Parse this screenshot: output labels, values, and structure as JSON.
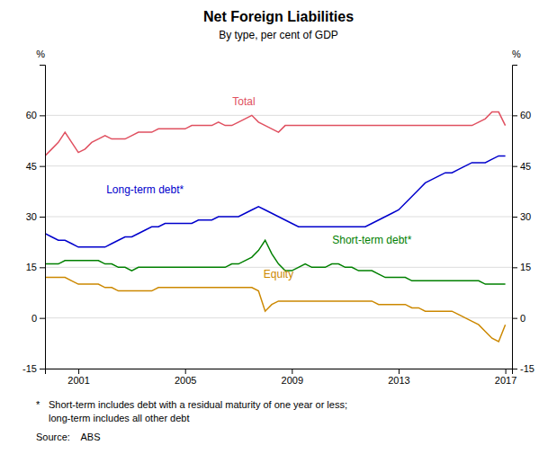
{
  "chart_data": {
    "type": "line",
    "title": "Net Foreign Liabilities",
    "subtitle": "By type, per cent of GDP",
    "ylabel": "%",
    "y2label": "%",
    "xlim": [
      1999.75,
      2017.25
    ],
    "xticks": [
      2001,
      2005,
      2009,
      2013,
      2017
    ],
    "ylim": [
      -15,
      75
    ],
    "yticks": [
      -15,
      0,
      15,
      30,
      45,
      60
    ],
    "y2lim": [
      -15,
      75
    ],
    "y2ticks": [
      -15,
      0,
      15,
      30,
      45,
      60
    ],
    "grid": true,
    "footnote": {
      "marker": "*",
      "lines": [
        "Short-term includes debt with a residual maturity of one year or less;",
        "long-term includes all other debt"
      ]
    },
    "source": "Source:    ABS",
    "x": [
      1999.75,
      2000.0,
      2000.25,
      2000.5,
      2000.75,
      2001.0,
      2001.25,
      2001.5,
      2001.75,
      2002.0,
      2002.25,
      2002.5,
      2002.75,
      2003.0,
      2003.25,
      2003.5,
      2003.75,
      2004.0,
      2004.25,
      2004.5,
      2004.75,
      2005.0,
      2005.25,
      2005.5,
      2005.75,
      2006.0,
      2006.25,
      2006.5,
      2006.75,
      2007.0,
      2007.25,
      2007.5,
      2007.75,
      2008.0,
      2008.25,
      2008.5,
      2008.75,
      2009.0,
      2009.25,
      2009.5,
      2009.75,
      2010.0,
      2010.25,
      2010.5,
      2010.75,
      2011.0,
      2011.25,
      2011.5,
      2011.75,
      2012.0,
      2012.25,
      2012.5,
      2012.75,
      2013.0,
      2013.25,
      2013.5,
      2013.75,
      2014.0,
      2014.25,
      2014.5,
      2014.75,
      2015.0,
      2015.25,
      2015.5,
      2015.75,
      2016.0,
      2016.25,
      2016.5,
      2016.75,
      2017.0
    ],
    "series": [
      {
        "name": "Total",
        "color": "#e05060",
        "label_x": 2007.2,
        "label_y": 63,
        "values": [
          48,
          50,
          52,
          55,
          52,
          49,
          50,
          52,
          53,
          54,
          53,
          53,
          53,
          54,
          55,
          55,
          55,
          56,
          56,
          56,
          56,
          56,
          57,
          57,
          57,
          57,
          58,
          57,
          57,
          58,
          59,
          60,
          58,
          57,
          56,
          55,
          57,
          57,
          57,
          57,
          57,
          57,
          57,
          57,
          57,
          57,
          57,
          57,
          57,
          57,
          57,
          57,
          57,
          57,
          57,
          57,
          57,
          57,
          57,
          57,
          57,
          57,
          57,
          57,
          57,
          58,
          59,
          61,
          61,
          57
        ]
      },
      {
        "name": "Long-term debt*",
        "color": "#0000cc",
        "label_x": 2003.5,
        "label_y": 37,
        "values": [
          25,
          24,
          23,
          23,
          22,
          21,
          21,
          21,
          21,
          21,
          22,
          23,
          24,
          24,
          25,
          26,
          27,
          27,
          28,
          28,
          28,
          28,
          28,
          29,
          29,
          29,
          30,
          30,
          30,
          30,
          31,
          32,
          33,
          32,
          31,
          30,
          29,
          28,
          27,
          27,
          27,
          27,
          27,
          27,
          27,
          27,
          27,
          27,
          27,
          28,
          29,
          30,
          31,
          32,
          34,
          36,
          38,
          40,
          41,
          42,
          43,
          43,
          44,
          45,
          46,
          46,
          46,
          47,
          48,
          48
        ]
      },
      {
        "name": "Short-term debt*",
        "color": "#008000",
        "label_x": 2012.0,
        "label_y": 22,
        "values": [
          16,
          16,
          16,
          17,
          17,
          17,
          17,
          17,
          17,
          16,
          16,
          15,
          15,
          14,
          15,
          15,
          15,
          15,
          15,
          15,
          15,
          15,
          15,
          15,
          15,
          15,
          15,
          15,
          16,
          16,
          17,
          18,
          20,
          23,
          19,
          16,
          14,
          14,
          15,
          16,
          15,
          15,
          15,
          16,
          16,
          15,
          15,
          14,
          14,
          14,
          13,
          12,
          12,
          12,
          12,
          11,
          11,
          11,
          11,
          11,
          11,
          11,
          11,
          11,
          11,
          11,
          10,
          10,
          10,
          10
        ]
      },
      {
        "name": "Equity",
        "color": "#cc8800",
        "label_x": 2008.5,
        "label_y": 12,
        "values": [
          12,
          12,
          12,
          12,
          11,
          10,
          10,
          10,
          10,
          9,
          9,
          8,
          8,
          8,
          8,
          8,
          8,
          9,
          9,
          9,
          9,
          9,
          9,
          9,
          9,
          9,
          9,
          9,
          9,
          9,
          9,
          9,
          8,
          2,
          4,
          5,
          5,
          5,
          5,
          5,
          5,
          5,
          5,
          5,
          5,
          5,
          5,
          5,
          5,
          5,
          4,
          4,
          4,
          4,
          4,
          3,
          3,
          2,
          2,
          2,
          2,
          2,
          1,
          0,
          -1,
          -2,
          -4,
          -6,
          -7,
          -2
        ]
      }
    ]
  }
}
